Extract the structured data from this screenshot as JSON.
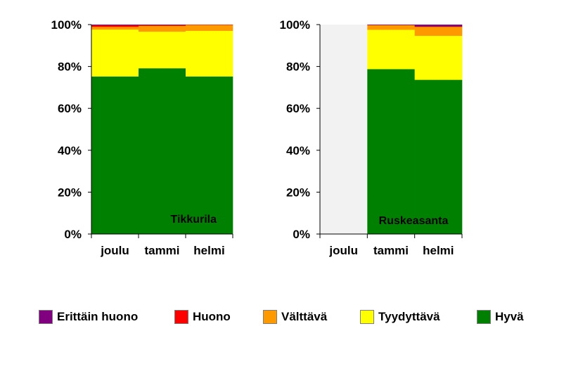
{
  "chart_data": [
    {
      "type": "bar",
      "stacked": true,
      "percent": true,
      "label": "Tikkurila",
      "categories": [
        "joulu",
        "tammi",
        "helmi"
      ],
      "series": [
        {
          "name": "Hyvä",
          "color": "#008000",
          "values": [
            75.3,
            79.2,
            75.3
          ]
        },
        {
          "name": "Tyydyttävä",
          "color": "#ffff00",
          "values": [
            22.4,
            17.5,
            21.8
          ]
        },
        {
          "name": "Välttävä",
          "color": "#ff9900",
          "values": [
            1.3,
            2.8,
            2.8
          ]
        },
        {
          "name": "Huono",
          "color": "#ff0000",
          "values": [
            0.7,
            0.4,
            0.1
          ]
        },
        {
          "name": "Erittäin huono",
          "color": "#800080",
          "values": [
            0.3,
            0.1,
            0.0
          ]
        }
      ],
      "y_ticks": [
        "0%",
        "20%",
        "40%",
        "60%",
        "80%",
        "100%"
      ],
      "ylim": [
        0,
        100
      ],
      "grid": true
    },
    {
      "type": "bar",
      "stacked": true,
      "percent": true,
      "label": "Ruskeasanta",
      "categories": [
        "joulu",
        "tammi",
        "helmi"
      ],
      "series": [
        {
          "name": "Hyvä",
          "color": "#008000",
          "values": [
            null,
            78.8,
            73.7
          ]
        },
        {
          "name": "Tyydyttävä",
          "color": "#ffff00",
          "values": [
            null,
            18.8,
            21.0
          ]
        },
        {
          "name": "Välttävä",
          "color": "#ff9900",
          "values": [
            null,
            2.2,
            4.3
          ]
        },
        {
          "name": "Huono",
          "color": "#ff0000",
          "values": [
            null,
            0.1,
            0.2
          ]
        },
        {
          "name": "Erittäin huono",
          "color": "#800080",
          "values": [
            null,
            0.1,
            0.8
          ]
        }
      ],
      "missing_category_color": "#f2f2f2",
      "y_ticks": [
        "0%",
        "20%",
        "40%",
        "60%",
        "80%",
        "100%"
      ],
      "ylim": [
        0,
        100
      ],
      "grid": true
    }
  ],
  "legend": [
    {
      "name": "Erittäin huono",
      "color": "#800080"
    },
    {
      "name": "Huono",
      "color": "#ff0000"
    },
    {
      "name": "Välttävä",
      "color": "#ff9900"
    },
    {
      "name": "Tyydyttävä",
      "color": "#ffff00"
    },
    {
      "name": "Hyvä",
      "color": "#008000"
    }
  ]
}
